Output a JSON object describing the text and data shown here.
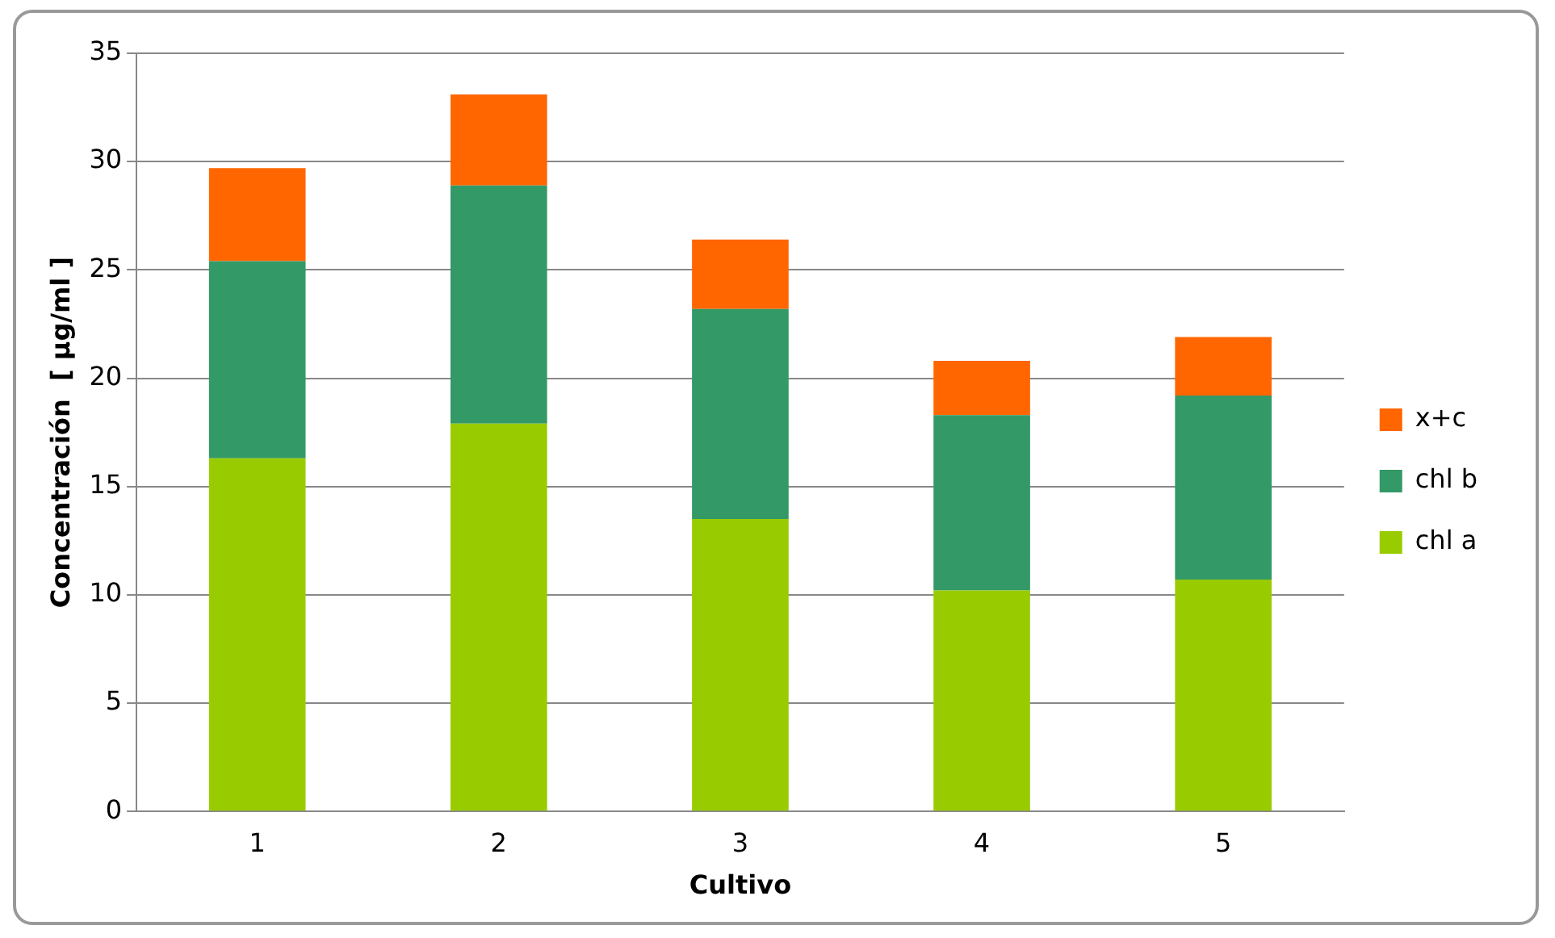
{
  "chart_data": {
    "type": "bar",
    "stacked": true,
    "xlabel": "Cultivo",
    "ylabel": "Concentración  [ µg/ml ]",
    "categories": [
      "1",
      "2",
      "3",
      "4",
      "5"
    ],
    "series": [
      {
        "name": "chl a",
        "color": "#99cc00",
        "values": [
          16.3,
          17.9,
          13.5,
          10.2,
          10.7
        ]
      },
      {
        "name": "chl b",
        "color": "#339966",
        "values": [
          9.1,
          11.0,
          9.7,
          8.1,
          8.5
        ]
      },
      {
        "name": "x+c",
        "color": "#ff6600",
        "values": [
          4.3,
          4.2,
          3.2,
          2.5,
          2.7
        ]
      }
    ],
    "ylim": [
      0,
      35
    ],
    "yticks": [
      0,
      5,
      10,
      15,
      20,
      25,
      30,
      35
    ],
    "grid": "y",
    "legend": "right"
  }
}
